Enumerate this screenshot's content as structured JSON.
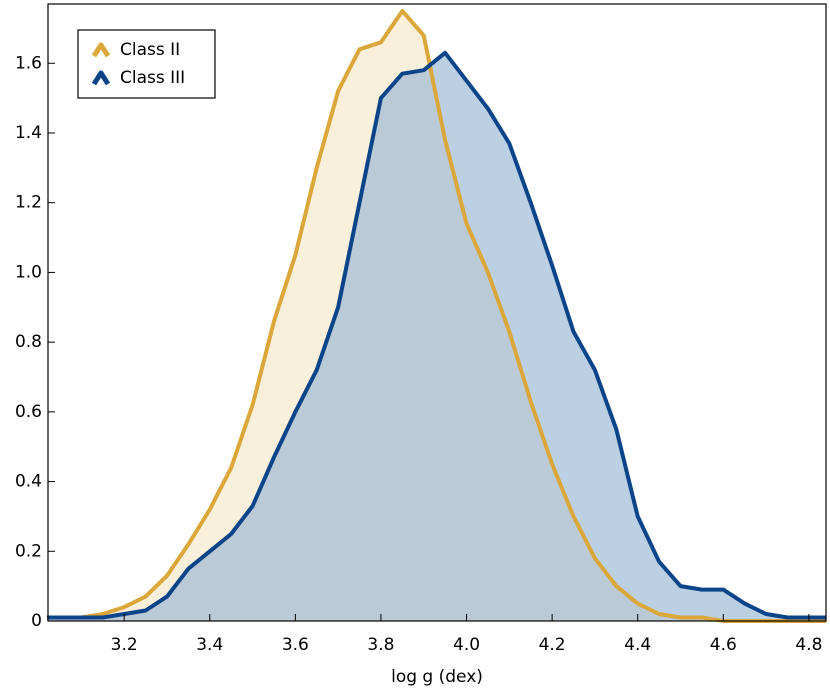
{
  "chart_data": {
    "type": "area",
    "xlabel": "log g (dex)",
    "x": [
      3.02,
      3.1,
      3.15,
      3.2,
      3.25,
      3.3,
      3.35,
      3.4,
      3.45,
      3.5,
      3.55,
      3.6,
      3.65,
      3.7,
      3.75,
      3.8,
      3.85,
      3.9,
      3.95,
      4.0,
      4.05,
      4.1,
      4.15,
      4.2,
      4.25,
      4.3,
      4.35,
      4.4,
      4.45,
      4.5,
      4.55,
      4.6,
      4.65,
      4.7,
      4.75,
      4.84
    ],
    "series": [
      {
        "name": "Class II",
        "color": "#dca73a",
        "fill": "#f5e6c4",
        "values": [
          0.01,
          0.01,
          0.02,
          0.04,
          0.07,
          0.13,
          0.22,
          0.32,
          0.44,
          0.62,
          0.86,
          1.05,
          1.3,
          1.52,
          1.64,
          1.66,
          1.75,
          1.68,
          1.38,
          1.14,
          1.0,
          0.83,
          0.63,
          0.45,
          0.3,
          0.18,
          0.1,
          0.05,
          0.02,
          0.01,
          0.01,
          0,
          0,
          0,
          0,
          0
        ]
      },
      {
        "name": "Class III",
        "color": "#0b4489",
        "fill": "#8fb0d2",
        "values": [
          0.01,
          0.01,
          0.01,
          0.02,
          0.03,
          0.07,
          0.15,
          0.2,
          0.25,
          0.33,
          0.47,
          0.6,
          0.72,
          0.9,
          1.2,
          1.5,
          1.57,
          1.58,
          1.63,
          1.55,
          1.47,
          1.37,
          1.2,
          1.02,
          0.83,
          0.72,
          0.55,
          0.3,
          0.17,
          0.1,
          0.09,
          0.09,
          0.05,
          0.02,
          0.01,
          0.01
        ]
      }
    ],
    "xlim": [
      3.022,
      4.84
    ],
    "ylim": [
      0,
      1.77
    ],
    "xticks": [
      3.2,
      3.4,
      3.6,
      3.8,
      {
        "value": 4,
        "label": "4.0"
      },
      4.2,
      4.4,
      4.6,
      4.8
    ],
    "yticks": [
      0,
      0.2,
      0.4,
      0.6,
      0.8,
      {
        "value": 1,
        "label": "1.0"
      },
      1.2,
      1.4,
      1.6
    ],
    "legend": "upper left"
  }
}
